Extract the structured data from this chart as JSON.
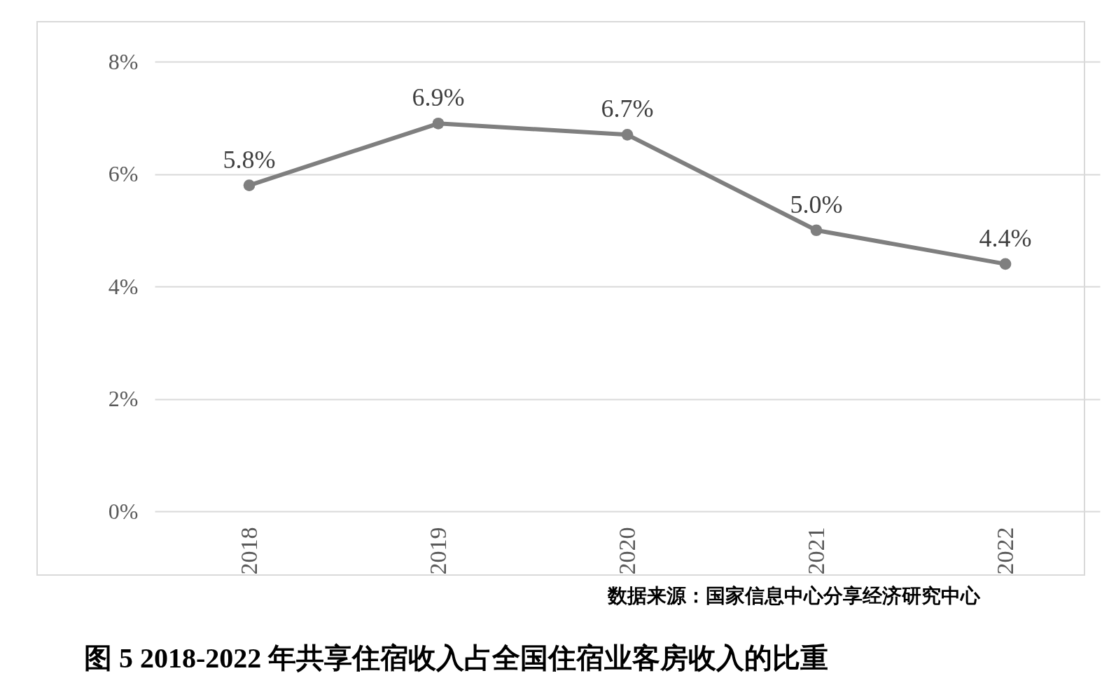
{
  "chart_data": {
    "type": "line",
    "title": "图 5  2018-2022 年共享住宿收入占全国住宿业客房收入的比重",
    "categories": [
      "2018",
      "2019",
      "2020",
      "2021",
      "2022"
    ],
    "values": [
      5.8,
      6.9,
      6.7,
      5.0,
      4.4
    ],
    "value_labels": [
      "5.8%",
      "6.9%",
      "6.7%",
      "5.0%",
      "4.4%"
    ],
    "color": "#7f7f7f",
    "ylim": [
      0,
      8
    ],
    "yticks": [
      {
        "value": 0,
        "label": "0%"
      },
      {
        "value": 2,
        "label": "2%"
      },
      {
        "value": 4,
        "label": "4%"
      },
      {
        "value": 6,
        "label": "6%"
      },
      {
        "value": 8,
        "label": "8%"
      }
    ],
    "grid": "y",
    "marker": "circle",
    "annotations": [
      "数据来源：国家信息中心分享经济研究中心"
    ]
  }
}
